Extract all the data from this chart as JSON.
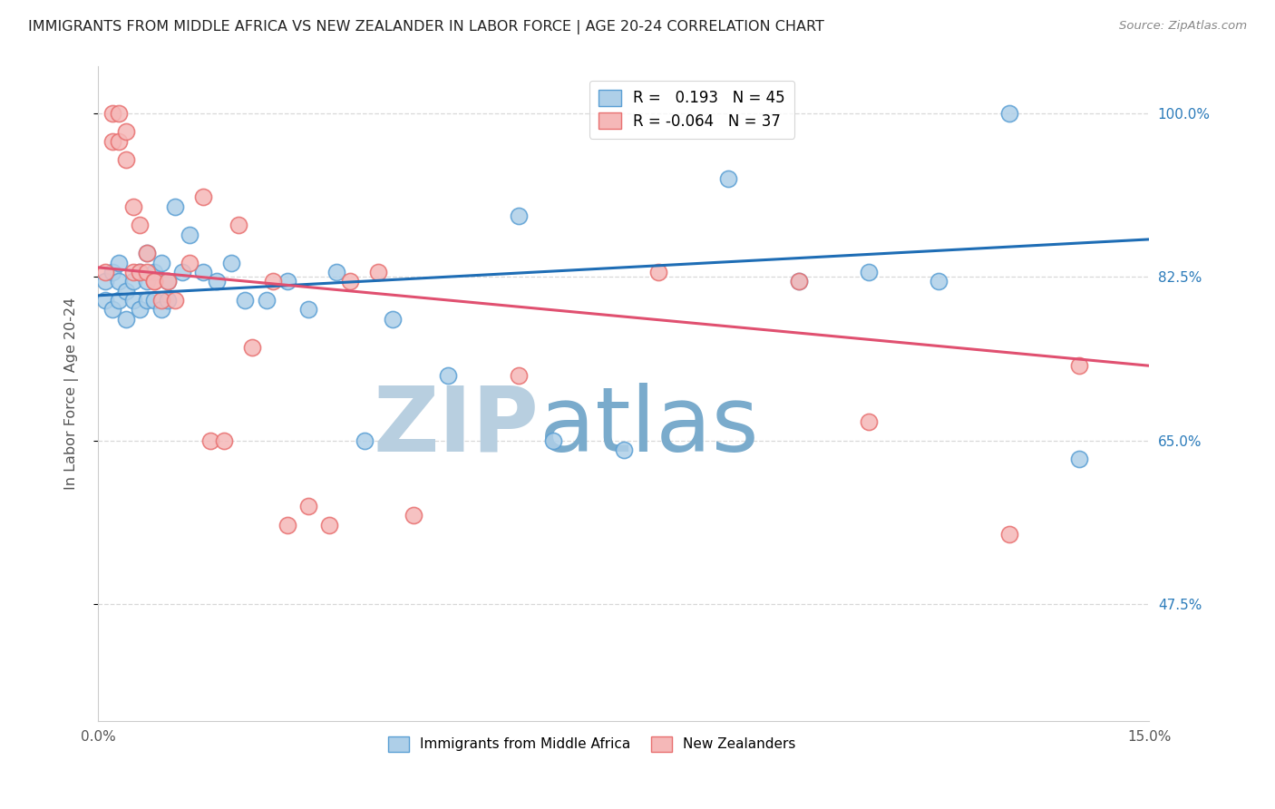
{
  "title": "IMMIGRANTS FROM MIDDLE AFRICA VS NEW ZEALANDER IN LABOR FORCE | AGE 20-24 CORRELATION CHART",
  "source": "Source: ZipAtlas.com",
  "ylabel": "In Labor Force | Age 20-24",
  "xlim": [
    0.0,
    0.15
  ],
  "ylim": [
    0.35,
    1.05
  ],
  "yticks": [
    0.475,
    0.65,
    0.825,
    1.0
  ],
  "ytick_labels": [
    "47.5%",
    "65.0%",
    "82.5%",
    "100.0%"
  ],
  "xticks": [
    0.0,
    0.025,
    0.05,
    0.075,
    0.1,
    0.125,
    0.15
  ],
  "xtick_labels": [
    "0.0%",
    "",
    "",
    "",
    "",
    "",
    "15.0%"
  ],
  "blue_R": 0.193,
  "blue_N": 45,
  "pink_R": -0.064,
  "pink_N": 37,
  "blue_line": [
    0.0,
    0.15,
    0.805,
    0.865
  ],
  "pink_line": [
    0.0,
    0.15,
    0.835,
    0.73
  ],
  "blue_scatter_x": [
    0.001,
    0.001,
    0.002,
    0.002,
    0.003,
    0.003,
    0.003,
    0.004,
    0.004,
    0.005,
    0.005,
    0.006,
    0.006,
    0.007,
    0.007,
    0.007,
    0.008,
    0.008,
    0.009,
    0.009,
    0.01,
    0.01,
    0.011,
    0.012,
    0.013,
    0.015,
    0.017,
    0.019,
    0.021,
    0.024,
    0.027,
    0.03,
    0.034,
    0.038,
    0.042,
    0.05,
    0.06,
    0.065,
    0.075,
    0.09,
    0.1,
    0.11,
    0.12,
    0.13,
    0.14
  ],
  "blue_scatter_y": [
    0.8,
    0.82,
    0.79,
    0.83,
    0.8,
    0.82,
    0.84,
    0.81,
    0.78,
    0.82,
    0.8,
    0.83,
    0.79,
    0.85,
    0.82,
    0.8,
    0.83,
    0.8,
    0.84,
    0.79,
    0.82,
    0.8,
    0.9,
    0.83,
    0.87,
    0.83,
    0.82,
    0.84,
    0.8,
    0.8,
    0.82,
    0.79,
    0.83,
    0.65,
    0.78,
    0.72,
    0.89,
    0.65,
    0.64,
    0.93,
    0.82,
    0.83,
    0.82,
    1.0,
    0.63
  ],
  "pink_scatter_x": [
    0.001,
    0.001,
    0.002,
    0.002,
    0.003,
    0.003,
    0.004,
    0.004,
    0.005,
    0.005,
    0.006,
    0.006,
    0.007,
    0.007,
    0.008,
    0.008,
    0.009,
    0.01,
    0.01,
    0.012,
    0.014,
    0.016,
    0.018,
    0.02,
    0.023,
    0.027,
    0.03,
    0.033,
    0.036,
    0.04,
    0.045,
    0.06,
    0.08,
    0.1,
    0.11,
    0.13,
    0.14
  ],
  "pink_scatter_x_vis": [
    0.001,
    0.002,
    0.002,
    0.003,
    0.003,
    0.004,
    0.004,
    0.005,
    0.005,
    0.006,
    0.006,
    0.007,
    0.007,
    0.008,
    0.008,
    0.009,
    0.01,
    0.011,
    0.013,
    0.015,
    0.016,
    0.018,
    0.02,
    0.022,
    0.025,
    0.027,
    0.03,
    0.033,
    0.036,
    0.04,
    0.045,
    0.06,
    0.08,
    0.1,
    0.11,
    0.13,
    0.14
  ],
  "pink_scatter_y": [
    0.83,
    1.0,
    0.97,
    1.0,
    0.97,
    0.95,
    0.98,
    0.83,
    0.9,
    0.88,
    0.83,
    0.83,
    0.85,
    0.82,
    0.82,
    0.8,
    0.82,
    0.8,
    0.84,
    0.91,
    0.65,
    0.65,
    0.88,
    0.75,
    0.82,
    0.56,
    0.58,
    0.56,
    0.82,
    0.83,
    0.57,
    0.72,
    0.83,
    0.82,
    0.67,
    0.55,
    0.73
  ],
  "watermark_zip": "ZIP",
  "watermark_atlas": "atlas",
  "watermark_color_zip": "#b8cfe0",
  "watermark_color_atlas": "#7aabcc",
  "background_color": "#ffffff",
  "grid_color": "#d8d8d8",
  "title_color": "#222222",
  "axis_label_color": "#555555",
  "tick_color": "#555555",
  "blue_tick_color": "#2b7bba",
  "legend_blue_label": "Immigrants from Middle Africa",
  "legend_pink_label": "New Zealanders"
}
